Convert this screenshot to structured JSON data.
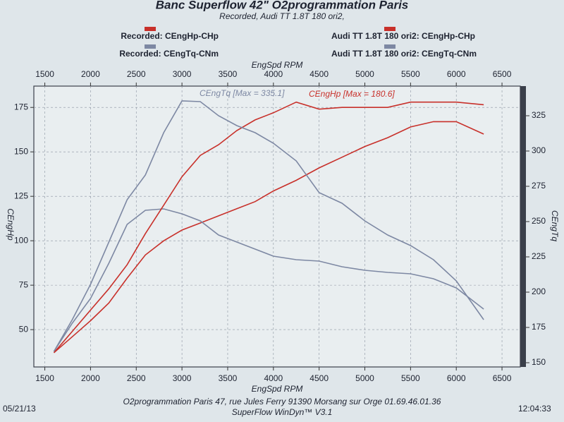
{
  "chart_data": {
    "type": "line",
    "title": "Banc Superflow 42\" O2programmation Paris",
    "subtitle": "Recorded, Audi TT 1.8T 180 ori2,",
    "xlabel": "EngSpd RPM",
    "ylabel": "CEngHp",
    "y2label": "CEngTq",
    "annotations": [
      "CEngTq [Max = 335.1]",
      "CEngHp [Max = 180.6]"
    ],
    "footer": "O2programmation Paris 47, rue Jules Ferry 91390 Morsang sur Orge 01.69.46.01.36",
    "software": "SuperFlow WinDyn™ V3.1",
    "date": "05/21/13",
    "time": "12:04:33",
    "grid": true,
    "x": [
      1600,
      1800,
      2000,
      2200,
      2400,
      2600,
      2800,
      3000,
      3200,
      3400,
      3600,
      3800,
      4000,
      4250,
      4500,
      4750,
      5000,
      5250,
      5500,
      5750,
      6000,
      6300
    ],
    "xlim": [
      1380,
      6700
    ],
    "xticks": [
      1500,
      2000,
      2500,
      3000,
      3500,
      4000,
      4500,
      5000,
      5500,
      6000,
      6500
    ],
    "ylim": [
      29,
      187
    ],
    "yticks": [
      50,
      75,
      100,
      125,
      150,
      175
    ],
    "y2lim": [
      147,
      346
    ],
    "y2ticks": [
      150,
      175,
      200,
      225,
      250,
      275,
      300,
      325
    ],
    "series": [
      {
        "name": "Recorded: CEngHp-CHp",
        "color": "#c8302a",
        "values": [
          37,
          46,
          55,
          65,
          79,
          92,
          100,
          106,
          110,
          114,
          118,
          122,
          128,
          134,
          141,
          147,
          153,
          158,
          164,
          167,
          167,
          160
        ]
      },
      {
        "name": "Recorded: CEngTq-CNm",
        "color": "#7d88a3",
        "axis": "y2",
        "values": [
          158,
          178,
          195.5,
          220.5,
          248,
          258,
          259,
          255.5,
          250.5,
          240.5,
          235.5,
          230.5,
          225.5,
          223,
          222,
          218,
          215.5,
          214,
          213,
          209.5,
          203,
          188
        ]
      },
      {
        "name": "Audi TT 1.8T 180 ori2: CEngHp-CHp",
        "color": "#c8302a",
        "values": [
          37,
          49,
          61,
          73,
          86.5,
          104,
          120,
          136,
          148,
          154,
          162,
          168,
          172,
          178,
          174,
          175,
          175,
          175,
          178,
          178,
          178,
          176.5
        ]
      },
      {
        "name": "Audi TT 1.8T 180 ori2: CEngTq-CNm",
        "color": "#7d88a3",
        "axis": "y2",
        "values": [
          158,
          180.5,
          205.5,
          235.5,
          265.5,
          283,
          313,
          335.5,
          335,
          325,
          318,
          313,
          305.5,
          293,
          270.5,
          263,
          250.5,
          240.5,
          233,
          223,
          208,
          180.5
        ]
      }
    ]
  }
}
